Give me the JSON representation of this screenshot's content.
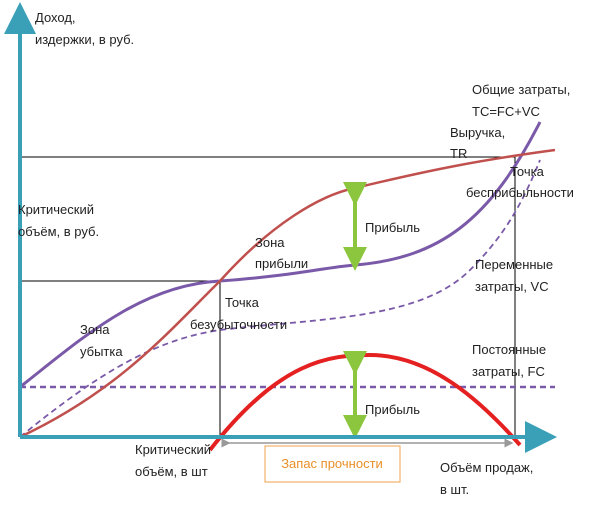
{
  "labels": {
    "y_axis": [
      "Доход,",
      "издержки, в руб."
    ],
    "total_costs": [
      "Общие затраты,",
      "TC=FC+VC"
    ],
    "revenue": [
      "Выручка,",
      "TR"
    ],
    "zero_profit_point": [
      "Точка",
      "бесприбыльности"
    ],
    "critical_volume_rub": [
      "Критический",
      "объём, в руб."
    ],
    "profit_upper": "Прибыль",
    "profit_zone": [
      "Зона",
      "прибыли"
    ],
    "variable_costs": [
      "Переменные",
      "затраты, VC"
    ],
    "break_even_point": [
      "Точка",
      "безубыточности"
    ],
    "loss_zone": [
      "Зона",
      "убытка"
    ],
    "fixed_costs": [
      "Постоянные",
      "затраты, FC"
    ],
    "profit_lower": "Прибыль",
    "critical_volume_units": [
      "Критический",
      "объём, в шт"
    ],
    "safety_margin": "Запас прочности",
    "x_axis": [
      "Объём продаж,",
      "в шт."
    ]
  }
}
